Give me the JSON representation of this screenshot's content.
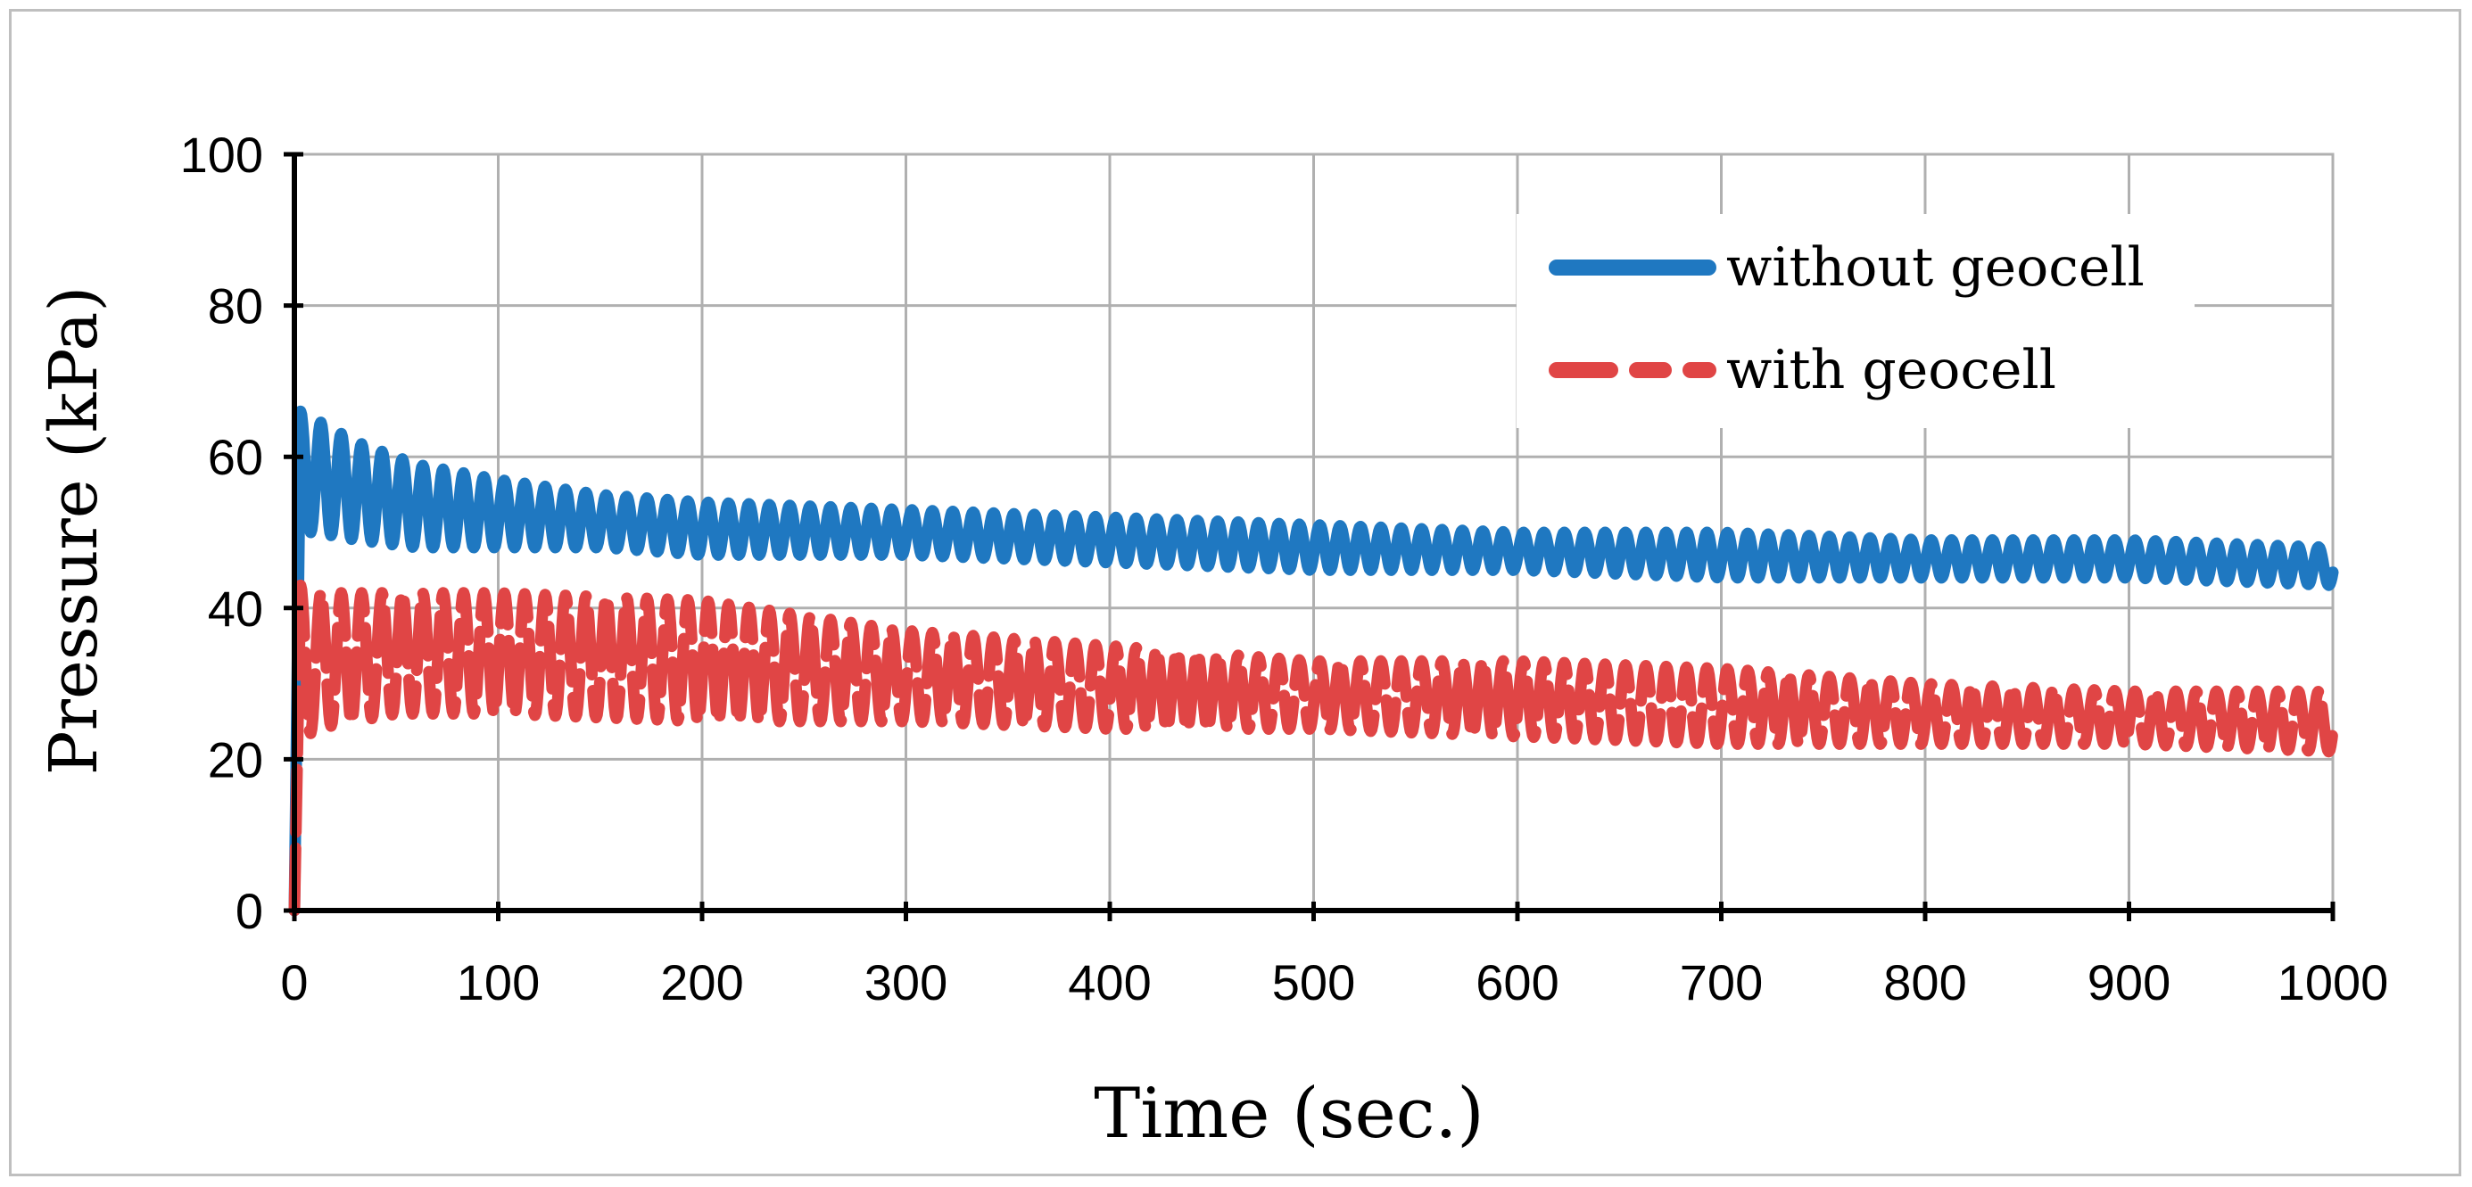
{
  "chart_data": {
    "type": "line",
    "xlabel": "Time (sec.)",
    "ylabel": "Pressure (kPa)",
    "xlim": [
      0,
      1000
    ],
    "ylim": [
      0,
      100
    ],
    "x_ticks": [
      0,
      100,
      200,
      300,
      400,
      500,
      600,
      700,
      800,
      900,
      1000
    ],
    "y_ticks": [
      0,
      20,
      40,
      60,
      80,
      100
    ],
    "grid": true,
    "legend_position": "top-right",
    "series": [
      {
        "name": "without geocell",
        "color": "#1f78c1",
        "line_style": "solid",
        "cycle_period": 10,
        "envelope": {
          "x": [
            0,
            3,
            10,
            30,
            60,
            100,
            150,
            200,
            300,
            400,
            500,
            600,
            700,
            800,
            900,
            1000
          ],
          "upper": [
            0,
            66,
            65,
            62,
            59,
            57,
            55,
            54,
            53,
            52,
            51,
            50,
            50,
            49,
            49,
            48
          ],
          "lower": [
            0,
            50,
            50,
            49,
            48,
            48,
            48,
            47,
            47,
            46,
            45,
            45,
            44,
            44,
            44,
            43
          ]
        }
      },
      {
        "name": "with geocell",
        "color": "#e04545",
        "line_style": "dashed",
        "cycle_period": 10,
        "envelope": {
          "x": [
            0,
            3,
            10,
            50,
            100,
            200,
            300,
            400,
            500,
            600,
            700,
            800,
            900,
            1000
          ],
          "upper": [
            0,
            43,
            42,
            42,
            42,
            41,
            37,
            35,
            33,
            33,
            32,
            30,
            29,
            29
          ],
          "lower": [
            0,
            22,
            24,
            26,
            26,
            25,
            25,
            24,
            24,
            23,
            22,
            22,
            22,
            21
          ]
        }
      }
    ]
  }
}
